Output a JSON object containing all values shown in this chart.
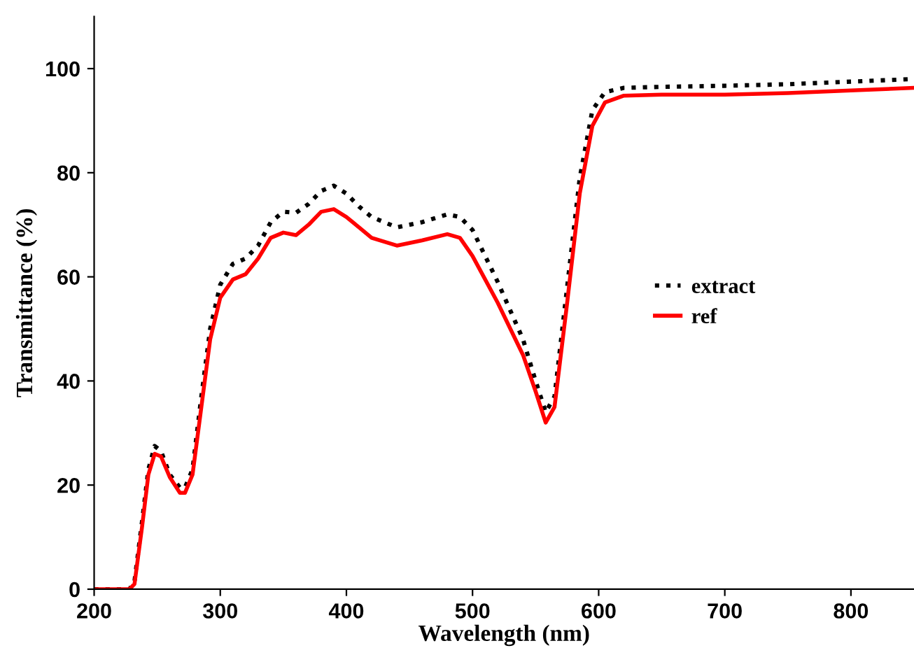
{
  "chart_data": {
    "type": "line",
    "xlabel": "Wavelength (nm)",
    "ylabel": "Transmittance (%)",
    "xlim": [
      200,
      850
    ],
    "ylim": [
      0,
      110
    ],
    "xticks": [
      200,
      300,
      400,
      500,
      600,
      700,
      800
    ],
    "yticks": [
      0,
      20,
      40,
      60,
      80,
      100
    ],
    "grid": false,
    "legend": "right",
    "marker": "none",
    "series": [
      {
        "name": "extract",
        "color": "#000000",
        "line_style": "dotted",
        "x": [
          200,
          228,
          232,
          238,
          243,
          248,
          253,
          260,
          268,
          272,
          278,
          285,
          292,
          300,
          310,
          320,
          330,
          340,
          350,
          360,
          370,
          380,
          390,
          400,
          410,
          420,
          440,
          460,
          480,
          490,
          500,
          520,
          540,
          550,
          558,
          565,
          575,
          585,
          595,
          605,
          620,
          650,
          700,
          750,
          800,
          850
        ],
        "values": [
          0,
          0,
          1.5,
          13,
          23,
          27.5,
          26.5,
          22,
          19.5,
          19.5,
          23,
          37,
          50,
          58.5,
          62.5,
          63.5,
          66,
          70.5,
          72.5,
          72.3,
          74,
          76.5,
          77.5,
          76,
          73.5,
          71.5,
          69.5,
          70.5,
          72,
          71.5,
          69,
          59,
          48,
          40,
          34,
          37,
          58,
          79,
          92,
          95.5,
          96.3,
          96.5,
          96.7,
          97,
          97.5,
          98
        ]
      },
      {
        "name": "ref",
        "color": "#ff0000",
        "line_style": "solid",
        "x": [
          200,
          228,
          232,
          238,
          243,
          248,
          253,
          260,
          268,
          272,
          278,
          285,
          292,
          300,
          310,
          320,
          330,
          340,
          350,
          360,
          370,
          380,
          390,
          400,
          410,
          420,
          440,
          460,
          480,
          490,
          500,
          520,
          540,
          550,
          558,
          565,
          575,
          585,
          595,
          605,
          620,
          650,
          700,
          750,
          800,
          850
        ],
        "values": [
          0,
          0,
          1,
          12,
          22,
          26,
          25.5,
          21.5,
          18.5,
          18.5,
          22,
          35,
          48,
          56,
          59.5,
          60.5,
          63.5,
          67.5,
          68.5,
          68,
          70,
          72.5,
          73,
          71.5,
          69.5,
          67.5,
          66,
          67,
          68.2,
          67.5,
          64,
          55,
          45,
          38,
          32,
          35,
          55,
          76,
          89,
          93.5,
          94.8,
          95,
          95,
          95.3,
          95.8,
          96.3
        ]
      }
    ]
  }
}
